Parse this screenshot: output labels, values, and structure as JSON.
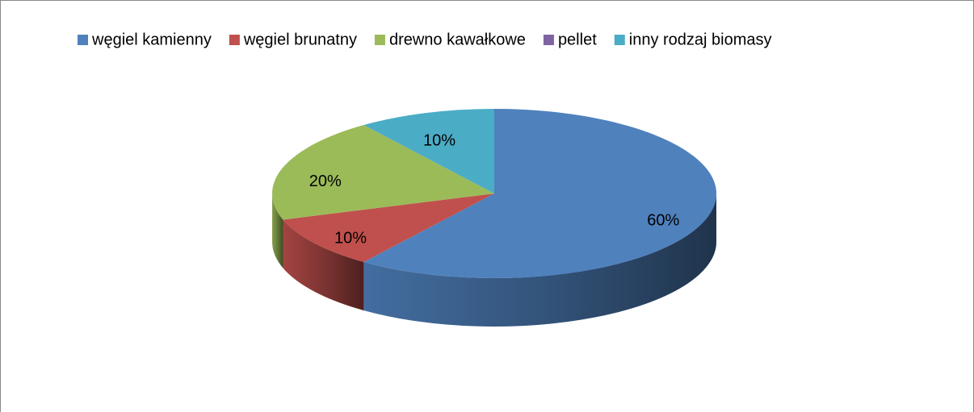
{
  "chart_data": {
    "type": "pie3d",
    "categories": [
      "węgiel kamienny",
      "węgiel brunatny",
      "drewno kawałkowe",
      "pellet",
      "inny rodzaj biomasy"
    ],
    "values": [
      60,
      10,
      20,
      0,
      10
    ],
    "value_labels": [
      "60%",
      "10%",
      "20%",
      null,
      "10%"
    ],
    "colors": [
      "#4f81bd",
      "#c0504d",
      "#9bbb59",
      "#8064a2",
      "#4bacc6"
    ],
    "legend": "top"
  }
}
